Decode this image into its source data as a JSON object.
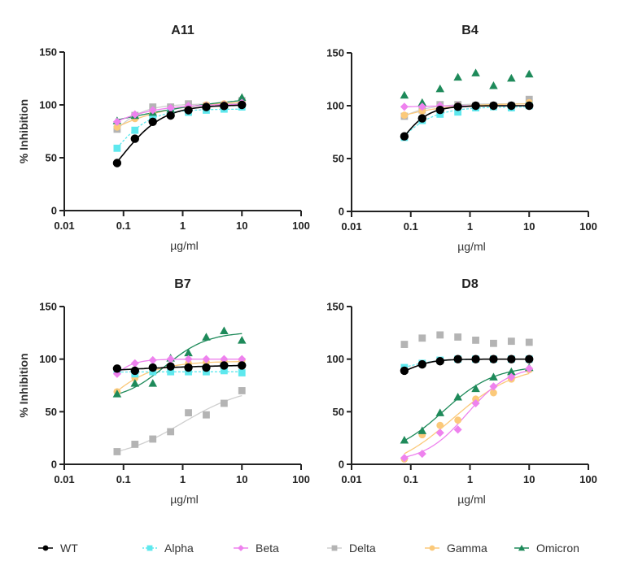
{
  "chart_data": [
    {
      "type": "scatter",
      "title": "A11",
      "xlabel": "µg/ml",
      "ylabel": "% Inhibition",
      "xscale": "log",
      "xlim": [
        0.01,
        100
      ],
      "ylim": [
        0,
        150
      ],
      "xticks": [
        "0.01",
        "0.1",
        "1",
        "10",
        "100"
      ],
      "yticks": [
        "0",
        "50",
        "100",
        "150"
      ],
      "x": [
        0.078,
        0.156,
        0.3125,
        0.625,
        1.25,
        2.5,
        5,
        10
      ],
      "series": [
        {
          "name": "WT",
          "values": [
            45,
            68,
            84,
            90,
            95,
            98,
            99,
            100
          ]
        },
        {
          "name": "Alpha",
          "values": [
            59,
            76,
            88,
            93,
            93,
            95,
            96,
            98
          ]
        },
        {
          "name": "Beta",
          "values": [
            84,
            91,
            95,
            97,
            99,
            99,
            100,
            102
          ]
        },
        {
          "name": "Delta",
          "values": [
            77,
            90,
            98,
            98,
            101,
            99,
            100,
            104
          ]
        },
        {
          "name": "Gamma",
          "values": [
            79,
            87,
            92,
            96,
            98,
            100,
            101,
            103
          ]
        },
        {
          "name": "Omicron",
          "values": [
            85,
            90,
            93,
            96,
            98,
            99,
            100,
            107
          ]
        }
      ]
    },
    {
      "type": "scatter",
      "title": "B4",
      "xlabel": "µg/ml",
      "ylabel": "",
      "xscale": "log",
      "xlim": [
        0.01,
        100
      ],
      "ylim": [
        0,
        150
      ],
      "xticks": [
        "0.01",
        "0.1",
        "1",
        "10",
        "100"
      ],
      "yticks": [
        "0",
        "50",
        "100",
        "150"
      ],
      "x": [
        0.078,
        0.156,
        0.3125,
        0.625,
        1.25,
        2.5,
        5,
        10
      ],
      "series": [
        {
          "name": "WT",
          "values": [
            71,
            88,
            96,
            99,
            100,
            100,
            100,
            100
          ]
        },
        {
          "name": "Alpha",
          "values": [
            70,
            86,
            92,
            94,
            98,
            99,
            98,
            100
          ]
        },
        {
          "name": "Beta",
          "values": [
            99,
            99,
            100,
            100,
            100,
            100,
            100,
            100
          ]
        },
        {
          "name": "Delta",
          "values": [
            90,
            96,
            101,
            101,
            100,
            100,
            100,
            106
          ]
        },
        {
          "name": "Gamma",
          "values": [
            91,
            95,
            98,
            100,
            100,
            100,
            100,
            103
          ]
        },
        {
          "name": "Omicron",
          "values": [
            110,
            103,
            116,
            127,
            131,
            119,
            126,
            130
          ]
        }
      ]
    },
    {
      "type": "scatter",
      "title": "B7",
      "xlabel": "µg/ml",
      "ylabel": "% Inhibition",
      "xscale": "log",
      "xlim": [
        0.01,
        100
      ],
      "ylim": [
        0,
        150
      ],
      "xticks": [
        "0.01",
        "0.1",
        "1",
        "10",
        "100"
      ],
      "yticks": [
        "0",
        "50",
        "100",
        "150"
      ],
      "x": [
        0.078,
        0.156,
        0.3125,
        0.625,
        1.25,
        2.5,
        5,
        10
      ],
      "series": [
        {
          "name": "WT",
          "values": [
            91,
            89,
            92,
            93,
            92,
            92,
            94,
            94
          ]
        },
        {
          "name": "Alpha",
          "values": [
            89,
            86,
            88,
            88,
            88,
            88,
            89,
            87
          ]
        },
        {
          "name": "Beta",
          "values": [
            86,
            96,
            99,
            100,
            100,
            100,
            100,
            100
          ]
        },
        {
          "name": "Delta",
          "values": [
            12,
            19,
            24,
            31,
            49,
            47,
            58,
            70
          ]
        },
        {
          "name": "Gamma",
          "values": [
            69,
            82,
            88,
            92,
            96,
            97,
            98,
            99
          ]
        },
        {
          "name": "Omicron",
          "values": [
            67,
            77,
            77,
            101,
            106,
            121,
            127,
            118
          ]
        }
      ]
    },
    {
      "type": "scatter",
      "title": "D8",
      "xlabel": "µg/ml",
      "ylabel": "",
      "xscale": "log",
      "xlim": [
        0.01,
        100
      ],
      "ylim": [
        0,
        150
      ],
      "xticks": [
        "0.01",
        "0.1",
        "1",
        "10",
        "100"
      ],
      "yticks": [
        "0",
        "50",
        "100",
        "150"
      ],
      "x": [
        0.078,
        0.156,
        0.3125,
        0.625,
        1.25,
        2.5,
        5,
        10
      ],
      "series": [
        {
          "name": "WT",
          "values": [
            89,
            95,
            98,
            100,
            100,
            100,
            100,
            100
          ]
        },
        {
          "name": "Alpha",
          "values": [
            92,
            96,
            99,
            100,
            100,
            100,
            100,
            100
          ]
        },
        {
          "name": "Beta",
          "values": [
            6,
            10,
            30,
            33,
            58,
            74,
            83,
            91
          ]
        },
        {
          "name": "Delta",
          "values": [
            114,
            120,
            123,
            121,
            118,
            115,
            117,
            116
          ]
        },
        {
          "name": "Gamma",
          "values": [
            5,
            28,
            37,
            42,
            62,
            68,
            81,
            90
          ]
        },
        {
          "name": "Omicron",
          "values": [
            23,
            32,
            49,
            64,
            72,
            83,
            88,
            92
          ]
        }
      ]
    }
  ],
  "legend": {
    "placement": "bottom",
    "entries": [
      {
        "name": "WT",
        "color": "#000000",
        "marker": "circle",
        "line": "solid"
      },
      {
        "name": "Alpha",
        "color": "#5ee8ee",
        "marker": "square",
        "line": "dashed"
      },
      {
        "name": "Beta",
        "color": "#ee82ee",
        "marker": "diamond",
        "line": "solid"
      },
      {
        "name": "Delta",
        "color": "#b4b4b4",
        "marker": "square",
        "line": "solid"
      },
      {
        "name": "Gamma",
        "color": "#fbc97a",
        "marker": "circle",
        "line": "solid"
      },
      {
        "name": "Omicron",
        "color": "#1e8a5a",
        "marker": "triangle",
        "line": "solid"
      }
    ]
  },
  "fits": {
    "A11": {
      "WT": true,
      "Alpha": true,
      "Beta": true,
      "Delta": true,
      "Gamma": true,
      "Omicron": true
    },
    "B4": {
      "WT": true,
      "Alpha": true,
      "Beta": true,
      "Delta": true,
      "Gamma": true,
      "Omicron": false
    },
    "B7": {
      "WT": true,
      "Alpha": true,
      "Beta": true,
      "Delta": true,
      "Gamma": true,
      "Omicron": true
    },
    "D8": {
      "WT": true,
      "Alpha": true,
      "Beta": true,
      "Delta": false,
      "Gamma": true,
      "Omicron": true
    }
  }
}
